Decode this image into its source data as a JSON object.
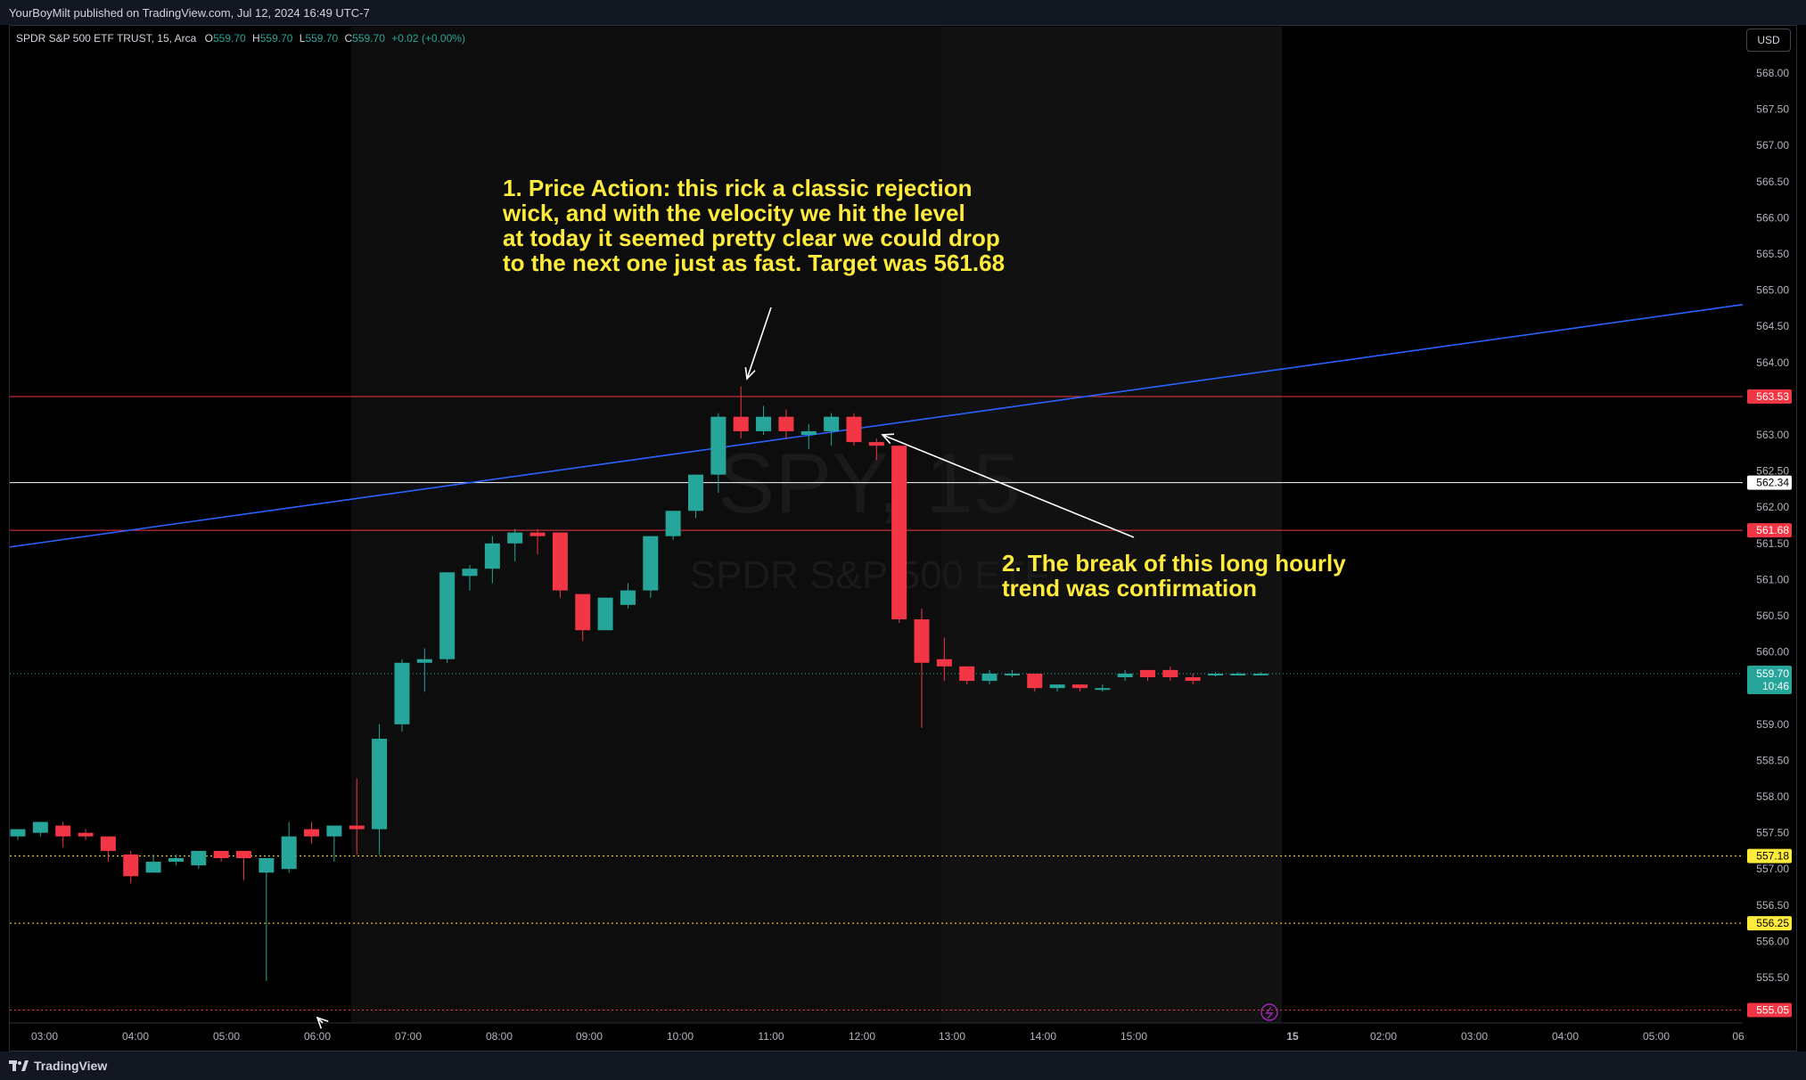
{
  "header": {
    "published_text": "YourBoyMilt published on TradingView.com, Jul 12, 2024 16:49 UTC-7"
  },
  "legend": {
    "symbol": "SPDR S&P 500 ETF TRUST, 15, Arca",
    "o_label": "O",
    "o_value": "559.70",
    "h_label": "H",
    "h_value": "559.70",
    "l_label": "L",
    "l_value": "559.70",
    "c_label": "C",
    "c_value": "559.70",
    "change": "+0.02 (+0.00%)"
  },
  "currency_button": "USD",
  "watermark": {
    "ticker": "SPY, 15",
    "name": "SPDR S&P 500 ETF"
  },
  "footer": {
    "brand": "TradingView"
  },
  "colors": {
    "up": "#26a69a",
    "down": "#f23645",
    "trendline": "#2962ff",
    "annotation": "#ffeb3b",
    "session_bg": "#0d0d0d"
  },
  "chart_data": {
    "type": "candlestick",
    "symbol": "SPY",
    "interval": "15",
    "ylim": [
      555.0,
      568.4
    ],
    "y_ticks": [
      "568.00",
      "567.50",
      "567.00",
      "566.50",
      "566.00",
      "565.50",
      "565.00",
      "564.50",
      "564.00",
      "563.00",
      "562.50",
      "562.00",
      "561.50",
      "561.00",
      "560.50",
      "560.00",
      "559.00",
      "558.50",
      "558.00",
      "557.50",
      "557.00",
      "556.50",
      "556.00",
      "555.50"
    ],
    "x_ticks": [
      "03:00",
      "04:00",
      "05:00",
      "06:00",
      "07:00",
      "08:00",
      "09:00",
      "10:00",
      "11:00",
      "12:00",
      "13:00",
      "14:00",
      "15:00",
      "15",
      "02:00",
      "03:00",
      "04:00",
      "05:00",
      "06"
    ],
    "candles": [
      {
        "o": 557.45,
        "h": 557.55,
        "l": 557.4,
        "c": 557.55
      },
      {
        "o": 557.5,
        "h": 557.65,
        "l": 557.45,
        "c": 557.65
      },
      {
        "o": 557.6,
        "h": 557.65,
        "l": 557.3,
        "c": 557.45
      },
      {
        "o": 557.5,
        "h": 557.55,
        "l": 557.4,
        "c": 557.45
      },
      {
        "o": 557.45,
        "h": 557.45,
        "l": 557.1,
        "c": 557.25
      },
      {
        "o": 557.2,
        "h": 557.25,
        "l": 556.8,
        "c": 556.9
      },
      {
        "o": 556.95,
        "h": 557.2,
        "l": 556.95,
        "c": 557.1
      },
      {
        "o": 557.1,
        "h": 557.2,
        "l": 557.05,
        "c": 557.15
      },
      {
        "o": 557.05,
        "h": 557.25,
        "l": 557.0,
        "c": 557.25
      },
      {
        "o": 557.25,
        "h": 557.25,
        "l": 557.1,
        "c": 557.15
      },
      {
        "o": 557.25,
        "h": 557.25,
        "l": 556.85,
        "c": 557.15
      },
      {
        "o": 556.95,
        "h": 557.15,
        "l": 555.45,
        "c": 557.15
      },
      {
        "o": 557.0,
        "h": 557.65,
        "l": 556.95,
        "c": 557.45
      },
      {
        "o": 557.55,
        "h": 557.65,
        "l": 557.35,
        "c": 557.45
      },
      {
        "o": 557.45,
        "h": 557.6,
        "l": 557.1,
        "c": 557.6
      },
      {
        "o": 557.6,
        "h": 558.25,
        "l": 557.2,
        "c": 557.55
      },
      {
        "o": 557.55,
        "h": 559.0,
        "l": 557.2,
        "c": 558.8
      },
      {
        "o": 559.0,
        "h": 559.9,
        "l": 558.9,
        "c": 559.85
      },
      {
        "o": 559.85,
        "h": 560.05,
        "l": 559.45,
        "c": 559.9
      },
      {
        "o": 559.9,
        "h": 561.1,
        "l": 559.85,
        "c": 561.1
      },
      {
        "o": 561.05,
        "h": 561.2,
        "l": 560.85,
        "c": 561.15
      },
      {
        "o": 561.15,
        "h": 561.6,
        "l": 560.95,
        "c": 561.5
      },
      {
        "o": 561.5,
        "h": 561.7,
        "l": 561.25,
        "c": 561.65
      },
      {
        "o": 561.65,
        "h": 561.7,
        "l": 561.35,
        "c": 561.6
      },
      {
        "o": 561.65,
        "h": 561.65,
        "l": 560.75,
        "c": 560.85
      },
      {
        "o": 560.8,
        "h": 560.8,
        "l": 560.15,
        "c": 560.3
      },
      {
        "o": 560.3,
        "h": 560.75,
        "l": 560.3,
        "c": 560.75
      },
      {
        "o": 560.65,
        "h": 560.95,
        "l": 560.6,
        "c": 560.85
      },
      {
        "o": 560.85,
        "h": 561.6,
        "l": 560.75,
        "c": 561.6
      },
      {
        "o": 561.6,
        "h": 561.95,
        "l": 561.55,
        "c": 561.95
      },
      {
        "o": 561.95,
        "h": 562.45,
        "l": 561.85,
        "c": 562.45
      },
      {
        "o": 562.45,
        "h": 563.3,
        "l": 562.2,
        "c": 563.25
      },
      {
        "o": 563.25,
        "h": 563.67,
        "l": 562.95,
        "c": 563.05
      },
      {
        "o": 563.05,
        "h": 563.4,
        "l": 563.0,
        "c": 563.25
      },
      {
        "o": 563.25,
        "h": 563.35,
        "l": 562.95,
        "c": 563.05
      },
      {
        "o": 563.0,
        "h": 563.15,
        "l": 562.8,
        "c": 563.05
      },
      {
        "o": 563.05,
        "h": 563.3,
        "l": 562.85,
        "c": 563.25
      },
      {
        "o": 563.25,
        "h": 563.3,
        "l": 562.85,
        "c": 562.9
      },
      {
        "o": 562.9,
        "h": 562.95,
        "l": 562.65,
        "c": 562.85
      },
      {
        "o": 562.85,
        "h": 562.85,
        "l": 560.4,
        "c": 560.45
      },
      {
        "o": 560.45,
        "h": 560.6,
        "l": 558.95,
        "c": 559.85
      },
      {
        "o": 559.9,
        "h": 560.2,
        "l": 559.6,
        "c": 559.8
      },
      {
        "o": 559.8,
        "h": 559.8,
        "l": 559.55,
        "c": 559.6
      },
      {
        "o": 559.6,
        "h": 559.75,
        "l": 559.55,
        "c": 559.7
      },
      {
        "o": 559.7,
        "h": 559.75,
        "l": 559.65,
        "c": 559.7
      },
      {
        "o": 559.7,
        "h": 559.7,
        "l": 559.45,
        "c": 559.5
      },
      {
        "o": 559.5,
        "h": 559.55,
        "l": 559.45,
        "c": 559.55
      },
      {
        "o": 559.55,
        "h": 559.55,
        "l": 559.45,
        "c": 559.5
      },
      {
        "o": 559.5,
        "h": 559.55,
        "l": 559.45,
        "c": 559.5
      },
      {
        "o": 559.65,
        "h": 559.75,
        "l": 559.6,
        "c": 559.7
      },
      {
        "o": 559.75,
        "h": 559.75,
        "l": 559.6,
        "c": 559.65
      },
      {
        "o": 559.75,
        "h": 559.8,
        "l": 559.6,
        "c": 559.65
      },
      {
        "o": 559.65,
        "h": 559.7,
        "l": 559.55,
        "c": 559.6
      },
      {
        "o": 559.68,
        "h": 559.72,
        "l": 559.66,
        "c": 559.7
      },
      {
        "o": 559.7,
        "h": 559.72,
        "l": 559.68,
        "c": 559.7
      },
      {
        "o": 559.7,
        "h": 559.72,
        "l": 559.68,
        "c": 559.7
      }
    ],
    "levels": [
      {
        "price": 563.53,
        "label": "563.53",
        "style": "solid",
        "color": "#f23645",
        "label_bg": "#f23645"
      },
      {
        "price": 562.34,
        "label": "562.34",
        "style": "solid",
        "color": "#ffffff",
        "label_bg": "#ffffff"
      },
      {
        "price": 561.68,
        "label": "561.68",
        "style": "solid",
        "color": "#f23645",
        "label_bg": "#f23645"
      },
      {
        "price": 557.18,
        "label": "557.18",
        "style": "dotted",
        "color": "#ffeb3b",
        "label_bg": "#ffeb3b"
      },
      {
        "price": 556.25,
        "label": "556.25",
        "style": "dotted",
        "color": "#ffeb3b",
        "label_bg": "#ffeb3b"
      },
      {
        "price": 555.05,
        "label": "555.05",
        "style": "dotted",
        "color": "#f23645",
        "label_bg": "#f23645"
      }
    ],
    "last_price": {
      "label": "559.70",
      "countdown": "10:46"
    },
    "trendline": {
      "start_price": 561.45,
      "end_price": 564.8
    },
    "annotations": [
      {
        "lines": [
          "1. Price Action: this rick a classic rejection",
          "wick, and with the velocity we hit the level",
          "at today it seemed pretty clear we could drop",
          "to the next one just as fast. Target was 561.68"
        ]
      },
      {
        "lines": [
          "2. The break of this long hourly",
          "trend was confirmation"
        ]
      }
    ]
  }
}
